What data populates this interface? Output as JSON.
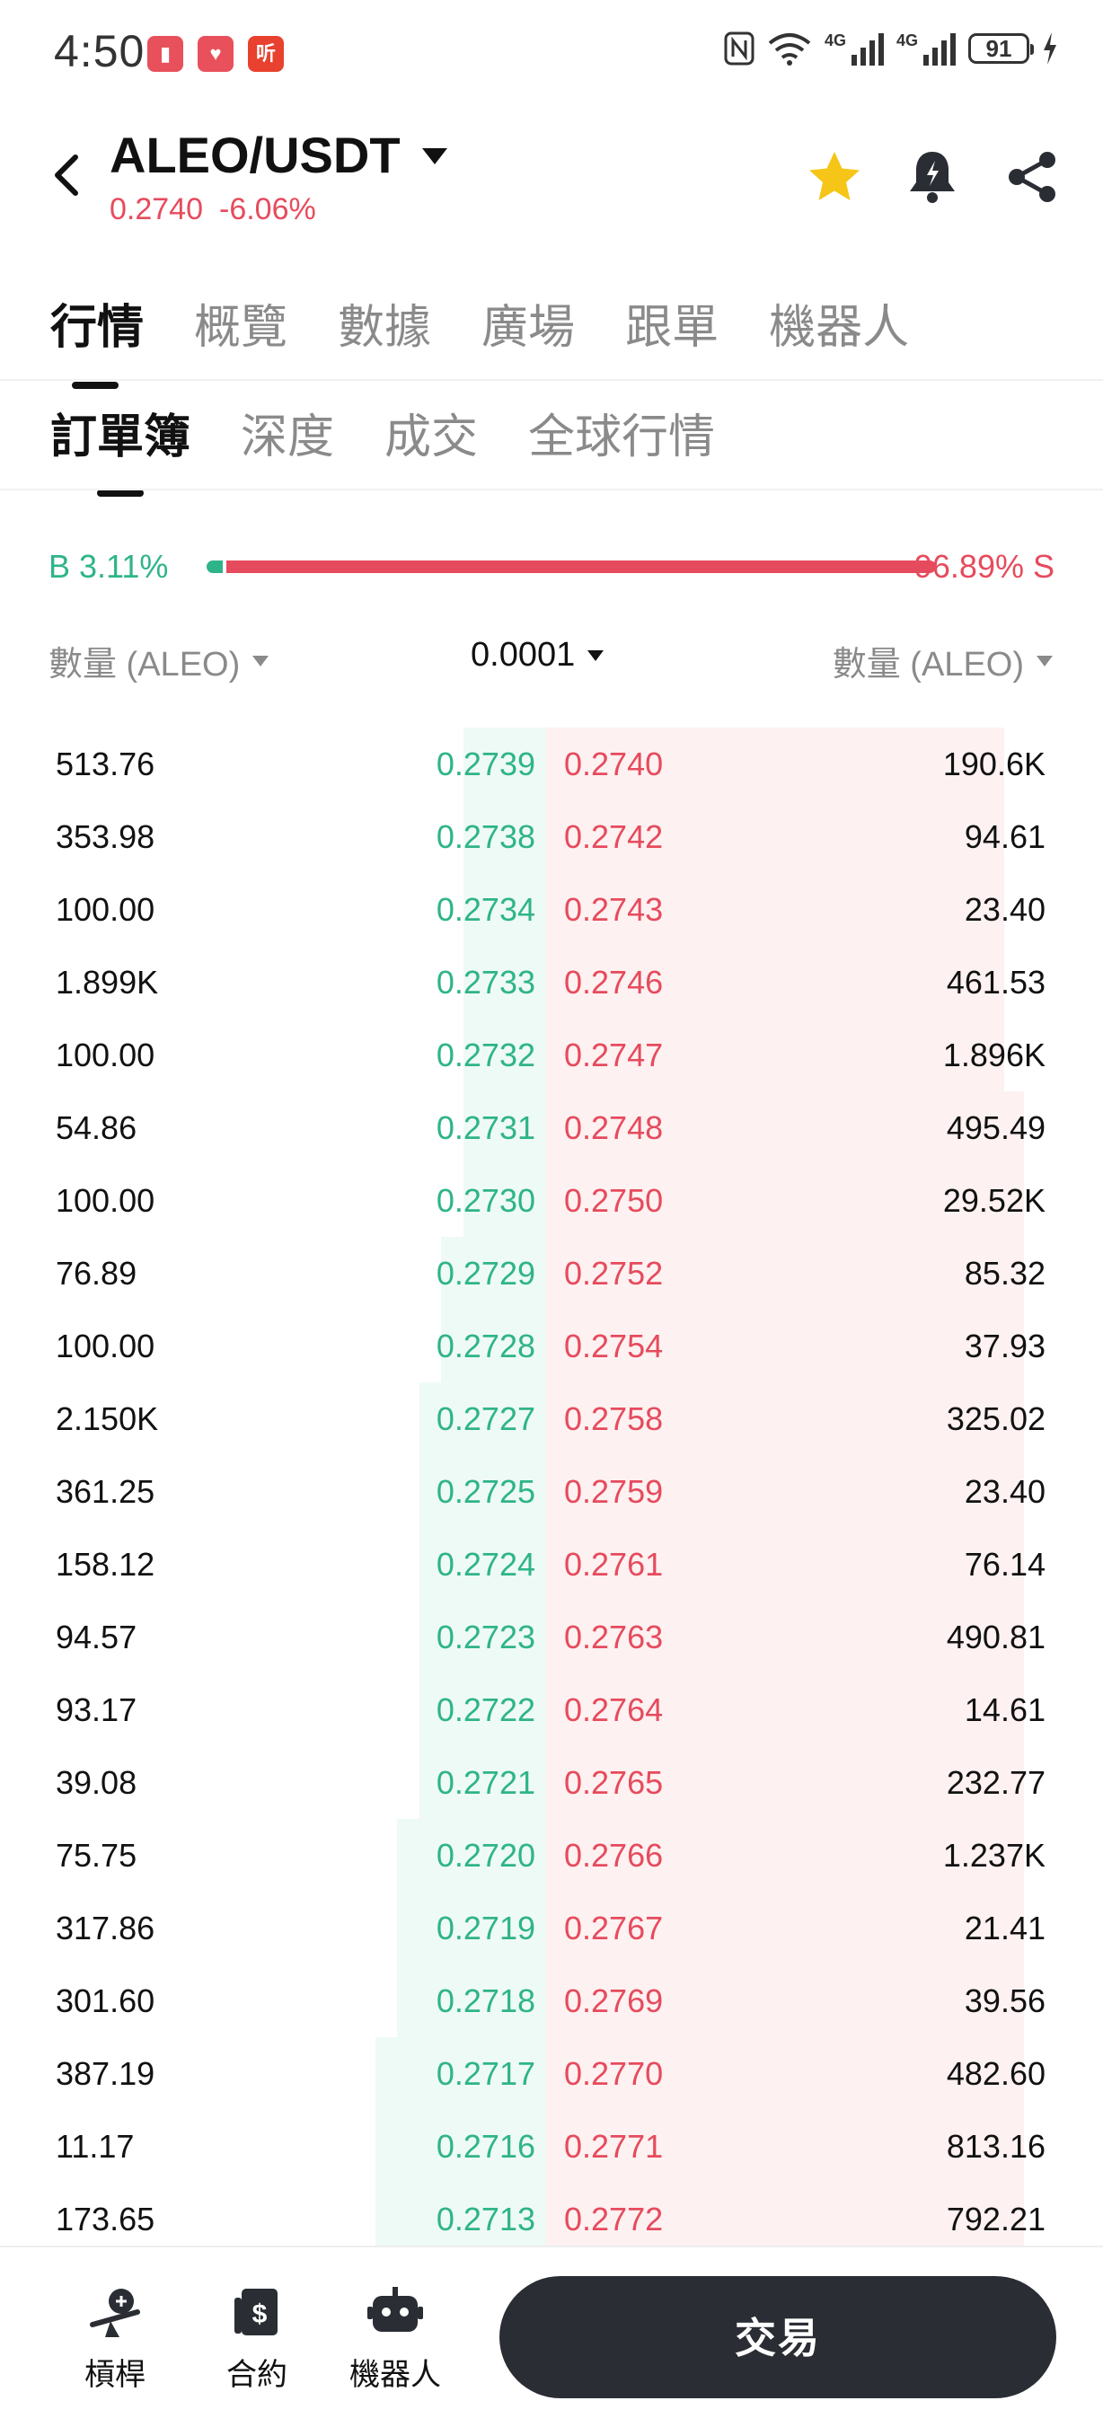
{
  "status_bar": {
    "time": "4:50",
    "app_badges": [
      {
        "name": "books-app-icon",
        "color": "#e8505b",
        "glyph": "▮"
      },
      {
        "name": "huawei-app-icon",
        "color": "#e8505b",
        "glyph": "♥"
      },
      {
        "name": "listen-app-icon",
        "color": "#e8412f",
        "glyph": "听"
      }
    ],
    "sig_tag_1": "4G",
    "sig_tag_2": "4G",
    "battery": "91"
  },
  "header": {
    "pair": "ALEO/USDT",
    "price": "0.2740",
    "change": "-6.06%",
    "star_color": "#f5c518"
  },
  "main_tabs": [
    "行情",
    "概覽",
    "數據",
    "廣場",
    "跟單",
    "機器人"
  ],
  "sub_tabs": [
    "訂單簿",
    "深度",
    "成交",
    "全球行情"
  ],
  "ratio": {
    "buy_label": "B 3.11%",
    "sell_label": "96.89% S",
    "buy_fraction": 0.0311
  },
  "columns": {
    "left": "數量 (ALEO)",
    "precision": "0.0001",
    "right": "數量 (ALEO)"
  },
  "orderbook": {
    "rows": [
      {
        "bid_qty": "513.76",
        "bid_price": "0.2739",
        "ask_price": "0.2740",
        "ask_qty": "190.6K",
        "bid_depth": 0.04,
        "ask_depth": 0.92
      },
      {
        "bid_qty": "353.98",
        "bid_price": "0.2738",
        "ask_price": "0.2742",
        "ask_qty": "94.61",
        "bid_depth": 0.04,
        "ask_depth": 0.92
      },
      {
        "bid_qty": "100.00",
        "bid_price": "0.2734",
        "ask_price": "0.2743",
        "ask_qty": "23.40",
        "bid_depth": 0.04,
        "ask_depth": 0.92
      },
      {
        "bid_qty": "1.899K",
        "bid_price": "0.2733",
        "ask_price": "0.2746",
        "ask_qty": "461.53",
        "bid_depth": 0.04,
        "ask_depth": 0.92
      },
      {
        "bid_qty": "100.00",
        "bid_price": "0.2732",
        "ask_price": "0.2747",
        "ask_qty": "1.896K",
        "bid_depth": 0.04,
        "ask_depth": 0.92
      },
      {
        "bid_qty": "54.86",
        "bid_price": "0.2731",
        "ask_price": "0.2748",
        "ask_qty": "495.49",
        "bid_depth": 0.04,
        "ask_depth": 0.96
      },
      {
        "bid_qty": "100.00",
        "bid_price": "0.2730",
        "ask_price": "0.2750",
        "ask_qty": "29.52K",
        "bid_depth": 0.04,
        "ask_depth": 0.96
      },
      {
        "bid_qty": "76.89",
        "bid_price": "0.2729",
        "ask_price": "0.2752",
        "ask_qty": "85.32",
        "bid_depth": 0.05,
        "ask_depth": 0.96
      },
      {
        "bid_qty": "100.00",
        "bid_price": "0.2728",
        "ask_price": "0.2754",
        "ask_qty": "37.93",
        "bid_depth": 0.05,
        "ask_depth": 0.96
      },
      {
        "bid_qty": "2.150K",
        "bid_price": "0.2727",
        "ask_price": "0.2758",
        "ask_qty": "325.02",
        "bid_depth": 0.06,
        "ask_depth": 0.96
      },
      {
        "bid_qty": "361.25",
        "bid_price": "0.2725",
        "ask_price": "0.2759",
        "ask_qty": "23.40",
        "bid_depth": 0.06,
        "ask_depth": 0.96
      },
      {
        "bid_qty": "158.12",
        "bid_price": "0.2724",
        "ask_price": "0.2761",
        "ask_qty": "76.14",
        "bid_depth": 0.06,
        "ask_depth": 0.96
      },
      {
        "bid_qty": "94.57",
        "bid_price": "0.2723",
        "ask_price": "0.2763",
        "ask_qty": "490.81",
        "bid_depth": 0.06,
        "ask_depth": 0.96
      },
      {
        "bid_qty": "93.17",
        "bid_price": "0.2722",
        "ask_price": "0.2764",
        "ask_qty": "14.61",
        "bid_depth": 0.06,
        "ask_depth": 0.96
      },
      {
        "bid_qty": "39.08",
        "bid_price": "0.2721",
        "ask_price": "0.2765",
        "ask_qty": "232.77",
        "bid_depth": 0.06,
        "ask_depth": 0.96
      },
      {
        "bid_qty": "75.75",
        "bid_price": "0.2720",
        "ask_price": "0.2766",
        "ask_qty": "1.237K",
        "bid_depth": 0.07,
        "ask_depth": 0.96
      },
      {
        "bid_qty": "317.86",
        "bid_price": "0.2719",
        "ask_price": "0.2767",
        "ask_qty": "21.41",
        "bid_depth": 0.07,
        "ask_depth": 0.96
      },
      {
        "bid_qty": "301.60",
        "bid_price": "0.2718",
        "ask_price": "0.2769",
        "ask_qty": "39.56",
        "bid_depth": 0.07,
        "ask_depth": 0.96
      },
      {
        "bid_qty": "387.19",
        "bid_price": "0.2717",
        "ask_price": "0.2770",
        "ask_qty": "482.60",
        "bid_depth": 0.08,
        "ask_depth": 0.96
      },
      {
        "bid_qty": "11.17",
        "bid_price": "0.2716",
        "ask_price": "0.2771",
        "ask_qty": "813.16",
        "bid_depth": 0.08,
        "ask_depth": 0.96
      },
      {
        "bid_qty": "173.65",
        "bid_price": "0.2713",
        "ask_price": "0.2772",
        "ask_qty": "792.21",
        "bid_depth": 0.08,
        "ask_depth": 0.96
      }
    ]
  },
  "bottom_nav": {
    "items": [
      {
        "label": "槓桿",
        "icon": "leverage-icon"
      },
      {
        "label": "合約",
        "icon": "contract-icon"
      },
      {
        "label": "機器人",
        "icon": "robot-icon"
      }
    ],
    "trade_label": "交易"
  }
}
